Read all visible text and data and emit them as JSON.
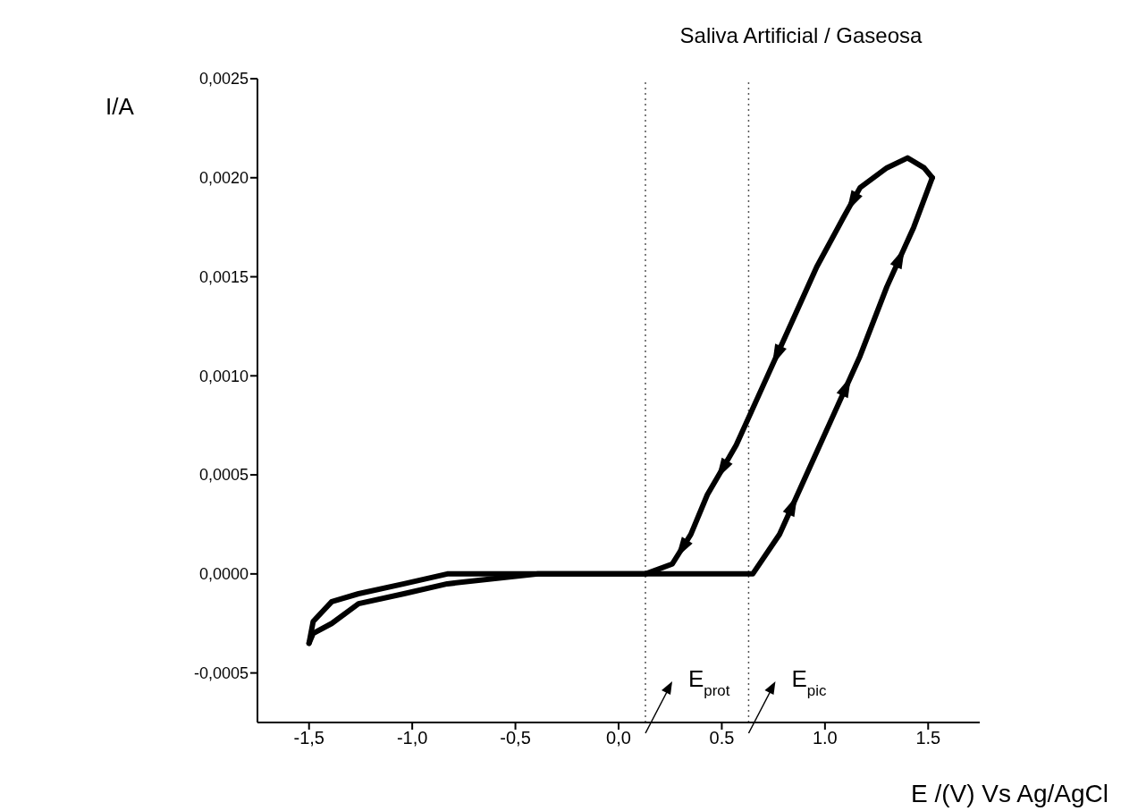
{
  "chart_data": {
    "type": "line",
    "title": "Saliva Artificial / Gaseosa",
    "xlabel": "E /(V) Vs Ag/AgCl",
    "ylabel": "I/A",
    "series": [
      {
        "color": "#000000",
        "x": [
          -1.5,
          -1.48,
          -1.39,
          -1.26,
          -1.04,
          -0.83,
          -0.39,
          0.04,
          0.65,
          0.78,
          0.91,
          1.04,
          1.17,
          1.3,
          1.43,
          1.52
        ],
        "values": [
          -0.00035,
          -0.00024,
          -0.00014,
          -0.0001,
          -5e-05,
          0.0,
          0.0,
          0.0,
          0.0,
          0.0002,
          0.0005,
          0.0008,
          0.0011,
          0.00145,
          0.00175,
          0.002
        ]
      },
      {
        "color": "#000000",
        "x": [
          1.52,
          1.48,
          1.4,
          1.3,
          1.17,
          1.09,
          0.96,
          0.83,
          0.7,
          0.57,
          0.43,
          0.35,
          0.26,
          0.13,
          0.0,
          -0.39,
          -0.83,
          -1.04,
          -1.26,
          -1.39,
          -1.48,
          -1.5
        ],
        "values": [
          0.002,
          0.00205,
          0.0021,
          0.00205,
          0.00195,
          0.0018,
          0.00155,
          0.00125,
          0.00095,
          0.00065,
          0.0004,
          0.0002,
          5e-05,
          0.0,
          0.0,
          0.0,
          -5e-05,
          -0.0001,
          -0.00015,
          -0.00025,
          -0.0003,
          -0.00035
        ]
      }
    ],
    "xlim": [
      -1.75,
      1.75
    ],
    "xticks": [
      {
        "value": -1.5,
        "label": "-1,5"
      },
      {
        "value": -1.0,
        "label": "-1,0"
      },
      {
        "value": -0.5,
        "label": "-0,5"
      },
      {
        "value": 0.0,
        "label": "0,0"
      },
      {
        "value": 0.5,
        "label": "0.5"
      },
      {
        "value": 1.0,
        "label": "1.0"
      },
      {
        "value": 1.5,
        "label": "1.5"
      }
    ],
    "ylim": [
      -0.00075,
      0.0025
    ],
    "yticks": [
      {
        "value": -0.0005,
        "label": "-0,0005"
      },
      {
        "value": 0.0,
        "label": "0,0000"
      },
      {
        "value": 0.0005,
        "label": "0,0005"
      },
      {
        "value": 0.001,
        "label": "0,0010"
      },
      {
        "value": 0.0015,
        "label": "0,0015"
      },
      {
        "value": 0.002,
        "label": "0,0020"
      },
      {
        "value": 0.0025,
        "label": "0,0025"
      }
    ],
    "ref_lines": [
      {
        "axis": "x",
        "value": 0.13,
        "label": "E$_{prot}$",
        "line_style": "dotted",
        "color": "#555555"
      },
      {
        "axis": "x",
        "value": 0.63,
        "label": "E$_{pic}$",
        "line_style": "dotted",
        "color": "#555555"
      }
    ],
    "grid": false,
    "legend": false,
    "marker": "none",
    "line_style": "solid"
  }
}
